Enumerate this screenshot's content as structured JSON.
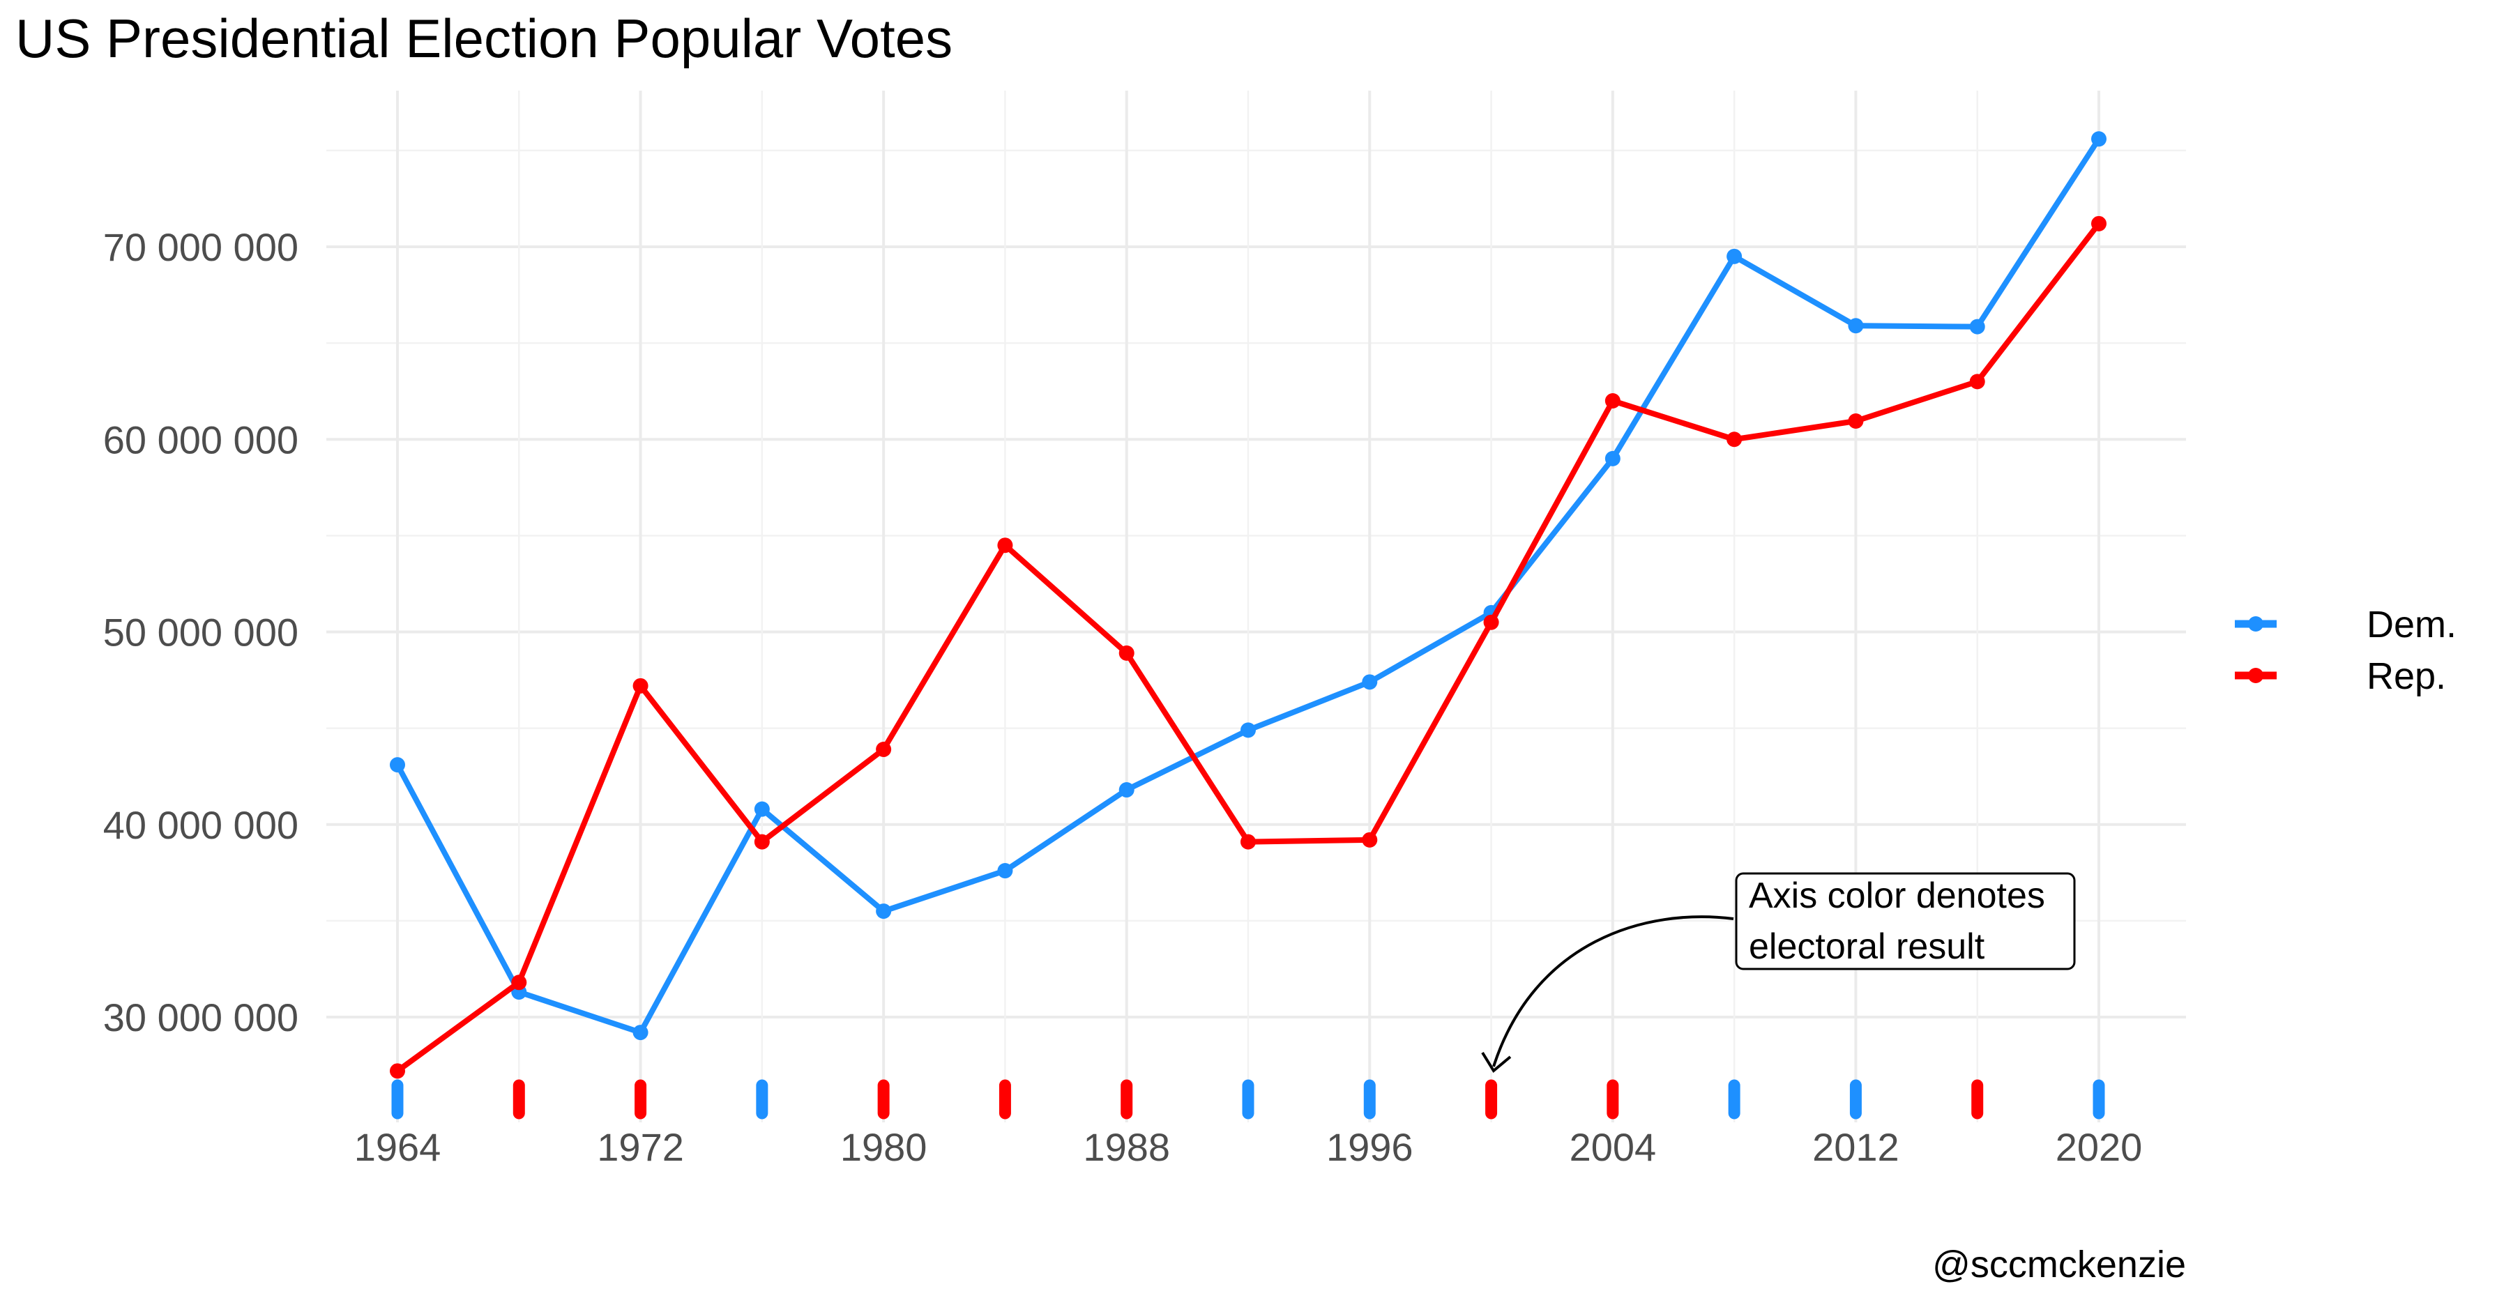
{
  "chart_data": {
    "type": "line",
    "title": "US Presidential Election Popular Votes",
    "caption": "@sccmckenzie",
    "annotation": "Axis color denotes electoral result",
    "x": [
      1964,
      1968,
      1972,
      1976,
      1980,
      1984,
      1988,
      1992,
      1996,
      2000,
      2004,
      2008,
      2012,
      2016,
      2020
    ],
    "series": [
      {
        "name": "Dem.",
        "color": "#1e90ff",
        "values": [
          43100000,
          31300000,
          29200000,
          40800000,
          35500000,
          37600000,
          41800000,
          44900000,
          47400000,
          51000000,
          59000000,
          69500000,
          65900000,
          65850000,
          75600000
        ]
      },
      {
        "name": "Rep.",
        "color": "#ff0000",
        "values": [
          27200000,
          31800000,
          47200000,
          39100000,
          43900000,
          54500000,
          48900000,
          39100000,
          39200000,
          50500000,
          62000000,
          60000000,
          60950000,
          63000000,
          71200000
        ]
      }
    ],
    "winners": [
      "Dem.",
      "Rep.",
      "Rep.",
      "Dem.",
      "Rep.",
      "Rep.",
      "Rep.",
      "Dem.",
      "Dem.",
      "Rep.",
      "Rep.",
      "Dem.",
      "Dem.",
      "Rep.",
      "Dem."
    ],
    "x_ticks": [
      "1964",
      "1972",
      "1980",
      "1988",
      "1996",
      "2004",
      "2012",
      "2020"
    ],
    "y_ticks": [
      "30 000 000",
      "40 000 000",
      "50 000 000",
      "60 000 000",
      "70 000 000"
    ],
    "y_tick_values": [
      30000000,
      40000000,
      50000000,
      60000000,
      70000000
    ],
    "xlim": [
      1964,
      2020
    ],
    "ylim": [
      25000000,
      75600000
    ],
    "grid": true,
    "legend_position": "right"
  }
}
